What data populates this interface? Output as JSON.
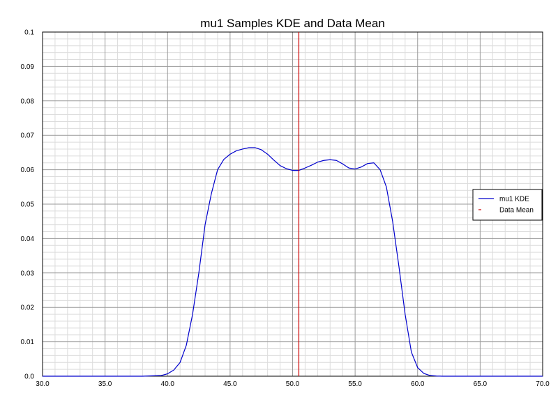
{
  "chart_data": {
    "type": "line",
    "title": "mu1 Samples KDE and Data Mean",
    "xlabel": "",
    "ylabel": "",
    "xlim": [
      30.0,
      70.0
    ],
    "ylim": [
      0.0,
      0.1
    ],
    "x_ticks": [
      "30.0",
      "35.0",
      "40.0",
      "45.0",
      "50.0",
      "55.0",
      "60.0",
      "65.0",
      "70.0"
    ],
    "y_ticks": [
      "0.0",
      "0.01",
      "0.02",
      "0.03",
      "0.04",
      "0.05",
      "0.06",
      "0.07",
      "0.08",
      "0.09",
      "0.1"
    ],
    "grid": true,
    "legend_position": "right",
    "series": [
      {
        "name": "mu1 KDE",
        "color": "#0000cc",
        "style": "solid",
        "x": [
          30.0,
          38.0,
          39.5,
          40.0,
          40.5,
          41.0,
          41.5,
          42.0,
          42.5,
          43.0,
          43.5,
          44.0,
          44.5,
          45.0,
          45.5,
          46.0,
          46.5,
          47.0,
          47.5,
          48.0,
          48.5,
          49.0,
          49.5,
          50.0,
          50.5,
          51.0,
          51.5,
          52.0,
          52.5,
          53.0,
          53.5,
          54.0,
          54.5,
          55.0,
          55.5,
          56.0,
          56.5,
          57.0,
          57.5,
          58.0,
          58.5,
          59.0,
          59.5,
          60.0,
          60.5,
          61.0,
          61.5,
          62.0,
          70.0
        ],
        "y": [
          0.0,
          0.0,
          0.0002,
          0.0007,
          0.0018,
          0.004,
          0.009,
          0.018,
          0.03,
          0.044,
          0.053,
          0.06,
          0.063,
          0.0645,
          0.0655,
          0.066,
          0.0664,
          0.0664,
          0.0658,
          0.0645,
          0.0628,
          0.0612,
          0.0603,
          0.0598,
          0.0598,
          0.0605,
          0.0613,
          0.0622,
          0.0627,
          0.0629,
          0.0627,
          0.0617,
          0.0605,
          0.0602,
          0.0608,
          0.0618,
          0.062,
          0.06,
          0.055,
          0.045,
          0.032,
          0.018,
          0.007,
          0.0025,
          0.0008,
          0.0002,
          5e-05,
          0.0,
          0.0
        ]
      },
      {
        "name": "Data Mean",
        "color": "#cc0000",
        "style": "dashed",
        "x": [
          50.5,
          50.5
        ],
        "y": [
          0.0,
          0.1
        ]
      }
    ]
  }
}
